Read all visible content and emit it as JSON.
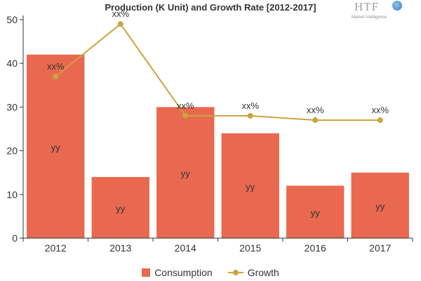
{
  "chart_data": {
    "type": "bar",
    "title": "Production (K Unit) and Growth Rate [2012-2017]",
    "categories": [
      "2012",
      "2013",
      "2014",
      "2015",
      "2016",
      "2017"
    ],
    "ylim": [
      0,
      50
    ],
    "yticks": [
      0,
      10,
      20,
      30,
      40,
      50
    ],
    "series": [
      {
        "name": "Consumption",
        "type": "bar",
        "color": "#e8694f",
        "values": [
          42,
          14,
          30,
          24,
          12,
          15
        ],
        "labels": [
          "yy",
          "yy",
          "yy",
          "yy",
          "yy",
          "yy"
        ]
      },
      {
        "name": "Growth",
        "type": "line",
        "color": "#c9a43f",
        "values": [
          37,
          49,
          28,
          28,
          27,
          27
        ],
        "labels": [
          "xx%",
          "xx%",
          "xx%",
          "xx%",
          "xx%",
          "xx%"
        ]
      }
    ],
    "legend": "bottom-center",
    "grid": false
  },
  "logo": {
    "main": "HTF",
    "sub": "Market Intelligence"
  }
}
